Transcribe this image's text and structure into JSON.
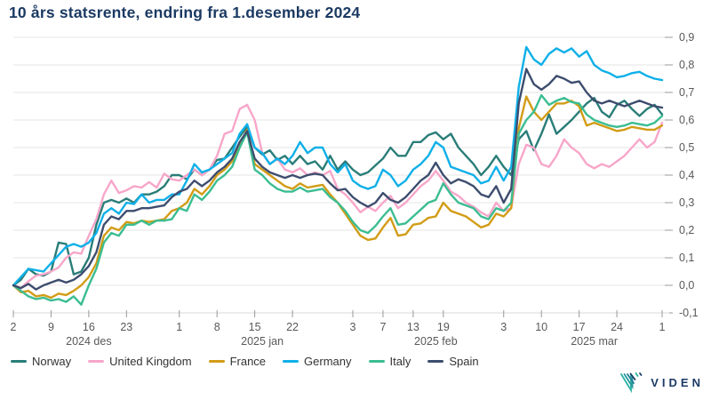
{
  "title": "10 års statsrente, endring fra 1.desember 2024",
  "logo": {
    "text": "VIDEN"
  },
  "colors": {
    "title": "#1b3a63",
    "grid": "#e6e6e6",
    "axis_line": "#d8d8d8",
    "tick": "#999999",
    "axis_text": "#595959",
    "logo_navy": "#1d3b66",
    "logo_teal": "#2ab3a3"
  },
  "chart_data": {
    "type": "line",
    "title": "10 års statsrente, endring fra 1.desember 2024",
    "xlabel": "",
    "ylabel": "",
    "ylim": [
      -0.1,
      0.9
    ],
    "y_tick_step": 0.1,
    "decimal_separator": ",",
    "grid": "on",
    "legend_position": "bottom-left",
    "x_ticks": [
      {
        "i": 0,
        "label": "2"
      },
      {
        "i": 5,
        "label": "9"
      },
      {
        "i": 10,
        "label": "16"
      },
      {
        "i": 15,
        "label": "23"
      },
      {
        "i": 22,
        "label": "1"
      },
      {
        "i": 27,
        "label": "8"
      },
      {
        "i": 32,
        "label": "15"
      },
      {
        "i": 37,
        "label": "22"
      },
      {
        "i": 45,
        "label": "3"
      },
      {
        "i": 49,
        "label": "7"
      },
      {
        "i": 53,
        "label": "13"
      },
      {
        "i": 57,
        "label": "19"
      },
      {
        "i": 65,
        "label": "3"
      },
      {
        "i": 70,
        "label": "10"
      },
      {
        "i": 75,
        "label": "17"
      },
      {
        "i": 80,
        "label": "24"
      },
      {
        "i": 86,
        "label": "1"
      }
    ],
    "month_labels": [
      {
        "i": 10,
        "label": "2024 des"
      },
      {
        "i": 33,
        "label": "2025 jan"
      },
      {
        "i": 56,
        "label": "2025 feb"
      },
      {
        "i": 77,
        "label": "2025 mar"
      }
    ],
    "series": [
      {
        "name": "Norway",
        "color": "#2a7d78",
        "values": [
          0,
          0.02,
          0.06,
          0.04,
          0.035,
          0.05,
          0.155,
          0.15,
          0.04,
          0.05,
          0.1,
          0.22,
          0.3,
          0.31,
          0.3,
          0.315,
          0.3,
          0.33,
          0.33,
          0.34,
          0.36,
          0.4,
          0.4,
          0.385,
          0.42,
          0.4,
          0.42,
          0.455,
          0.46,
          0.5,
          0.54,
          0.575,
          0.5,
          0.475,
          0.49,
          0.455,
          0.47,
          0.44,
          0.47,
          0.44,
          0.45,
          0.42,
          0.47,
          0.42,
          0.45,
          0.42,
          0.4,
          0.41,
          0.435,
          0.46,
          0.5,
          0.47,
          0.47,
          0.52,
          0.52,
          0.545,
          0.555,
          0.53,
          0.55,
          0.5,
          0.47,
          0.44,
          0.4,
          0.43,
          0.47,
          0.43,
          0.4,
          0.53,
          0.56,
          0.49,
          0.55,
          0.62,
          0.55,
          0.575,
          0.6,
          0.63,
          0.66,
          0.68,
          0.63,
          0.61,
          0.655,
          0.67,
          0.64,
          0.615,
          0.64,
          0.655,
          0.62
        ]
      },
      {
        "name": "United Kingdom",
        "color": "#f7a6c9",
        "values": [
          0,
          -0.01,
          0.015,
          0.035,
          0.04,
          0.05,
          0.065,
          0.1,
          0.12,
          0.115,
          0.18,
          0.24,
          0.33,
          0.38,
          0.335,
          0.345,
          0.36,
          0.355,
          0.375,
          0.355,
          0.405,
          0.385,
          0.38,
          0.4,
          0.42,
          0.4,
          0.42,
          0.47,
          0.55,
          0.56,
          0.64,
          0.655,
          0.6,
          0.48,
          0.44,
          0.46,
          0.42,
          0.41,
          0.425,
          0.4,
          0.41,
          0.4,
          0.415,
          0.35,
          0.33,
          0.3,
          0.265,
          0.285,
          0.27,
          0.3,
          0.325,
          0.28,
          0.3,
          0.33,
          0.36,
          0.38,
          0.415,
          0.38,
          0.34,
          0.325,
          0.3,
          0.285,
          0.265,
          0.25,
          0.3,
          0.27,
          0.28,
          0.44,
          0.51,
          0.5,
          0.44,
          0.43,
          0.47,
          0.53,
          0.5,
          0.48,
          0.44,
          0.425,
          0.44,
          0.43,
          0.45,
          0.47,
          0.5,
          0.53,
          0.5,
          0.52,
          0.59
        ]
      },
      {
        "name": "France",
        "color": "#d29c16",
        "values": [
          0,
          -0.025,
          -0.02,
          -0.04,
          -0.035,
          -0.045,
          -0.03,
          -0.035,
          -0.02,
          0.0,
          0.03,
          0.08,
          0.18,
          0.21,
          0.2,
          0.23,
          0.225,
          0.235,
          0.23,
          0.235,
          0.24,
          0.27,
          0.28,
          0.3,
          0.35,
          0.33,
          0.36,
          0.4,
          0.42,
          0.45,
          0.51,
          0.565,
          0.44,
          0.42,
          0.4,
          0.38,
          0.36,
          0.35,
          0.37,
          0.355,
          0.36,
          0.365,
          0.33,
          0.3,
          0.26,
          0.22,
          0.18,
          0.165,
          0.17,
          0.21,
          0.245,
          0.18,
          0.185,
          0.22,
          0.225,
          0.245,
          0.25,
          0.3,
          0.27,
          0.26,
          0.25,
          0.23,
          0.21,
          0.22,
          0.26,
          0.25,
          0.28,
          0.57,
          0.685,
          0.63,
          0.6,
          0.63,
          0.66,
          0.66,
          0.67,
          0.65,
          0.58,
          0.59,
          0.58,
          0.57,
          0.56,
          0.565,
          0.575,
          0.57,
          0.565,
          0.565,
          0.58
        ]
      },
      {
        "name": "Germany",
        "color": "#0fb0e8",
        "values": [
          0,
          0.03,
          0.06,
          0.055,
          0.05,
          0.08,
          0.11,
          0.14,
          0.15,
          0.14,
          0.155,
          0.19,
          0.26,
          0.28,
          0.26,
          0.3,
          0.295,
          0.33,
          0.3,
          0.31,
          0.31,
          0.33,
          0.33,
          0.38,
          0.44,
          0.41,
          0.42,
          0.44,
          0.46,
          0.48,
          0.55,
          0.585,
          0.5,
          0.48,
          0.44,
          0.46,
          0.44,
          0.47,
          0.52,
          0.48,
          0.5,
          0.5,
          0.44,
          0.41,
          0.44,
          0.38,
          0.36,
          0.35,
          0.36,
          0.42,
          0.4,
          0.36,
          0.38,
          0.42,
          0.44,
          0.47,
          0.52,
          0.5,
          0.43,
          0.42,
          0.41,
          0.4,
          0.37,
          0.38,
          0.43,
          0.38,
          0.43,
          0.72,
          0.865,
          0.82,
          0.8,
          0.84,
          0.86,
          0.845,
          0.86,
          0.83,
          0.85,
          0.8,
          0.78,
          0.77,
          0.755,
          0.76,
          0.77,
          0.775,
          0.76,
          0.75,
          0.745
        ]
      },
      {
        "name": "Italy",
        "color": "#3bbd92",
        "values": [
          0,
          -0.02,
          -0.04,
          -0.05,
          -0.045,
          -0.055,
          -0.05,
          -0.06,
          -0.04,
          -0.07,
          0.0,
          0.06,
          0.155,
          0.19,
          0.18,
          0.22,
          0.22,
          0.235,
          0.22,
          0.235,
          0.235,
          0.24,
          0.28,
          0.27,
          0.33,
          0.31,
          0.34,
          0.38,
          0.4,
          0.43,
          0.5,
          0.555,
          0.42,
          0.4,
          0.37,
          0.35,
          0.34,
          0.34,
          0.355,
          0.34,
          0.345,
          0.35,
          0.32,
          0.3,
          0.27,
          0.23,
          0.2,
          0.19,
          0.215,
          0.25,
          0.28,
          0.22,
          0.225,
          0.25,
          0.275,
          0.3,
          0.31,
          0.37,
          0.33,
          0.3,
          0.29,
          0.28,
          0.25,
          0.24,
          0.28,
          0.27,
          0.3,
          0.55,
          0.6,
          0.63,
          0.69,
          0.655,
          0.67,
          0.68,
          0.665,
          0.66,
          0.62,
          0.6,
          0.59,
          0.58,
          0.575,
          0.58,
          0.59,
          0.585,
          0.58,
          0.59,
          0.615
        ]
      },
      {
        "name": "Spain",
        "color": "#3d4d6e",
        "values": [
          0,
          -0.01,
          0.005,
          -0.015,
          0.0,
          0.01,
          0.02,
          0.01,
          0.02,
          0.04,
          0.07,
          0.12,
          0.22,
          0.25,
          0.24,
          0.27,
          0.27,
          0.28,
          0.28,
          0.285,
          0.29,
          0.32,
          0.34,
          0.35,
          0.38,
          0.36,
          0.38,
          0.41,
          0.43,
          0.46,
          0.52,
          0.56,
          0.46,
          0.43,
          0.41,
          0.4,
          0.39,
          0.4,
          0.39,
          0.4,
          0.405,
          0.4,
          0.37,
          0.345,
          0.35,
          0.32,
          0.3,
          0.285,
          0.3,
          0.335,
          0.31,
          0.3,
          0.32,
          0.35,
          0.38,
          0.4,
          0.445,
          0.4,
          0.37,
          0.385,
          0.375,
          0.36,
          0.33,
          0.32,
          0.36,
          0.3,
          0.35,
          0.66,
          0.785,
          0.73,
          0.71,
          0.73,
          0.76,
          0.75,
          0.735,
          0.74,
          0.7,
          0.67,
          0.66,
          0.67,
          0.66,
          0.65,
          0.66,
          0.67,
          0.66,
          0.65,
          0.645
        ]
      }
    ]
  }
}
